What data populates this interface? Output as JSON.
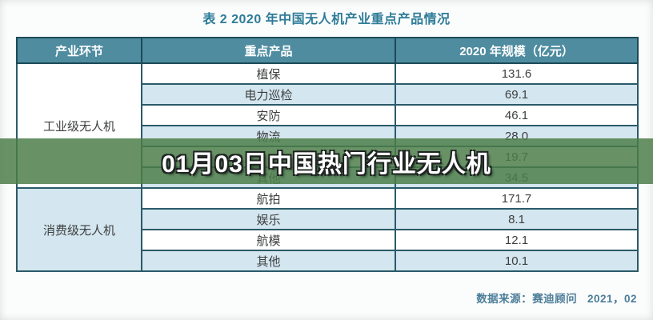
{
  "page": {
    "title": "表 2  2020 年中国无人机产业重点产品情况",
    "source_note": "数据来源：赛迪顾问   2021，02"
  },
  "banner": {
    "text": "01月03日中国热门行业无人机"
  },
  "chart_data": {
    "type": "table",
    "title": "表 2  2020 年中国无人机产业重点产品情况",
    "headers": [
      "产业环节",
      "重点产品",
      "2020 年规模（亿元）"
    ],
    "sections": [
      {
        "category": "工业级无人机",
        "rows": [
          [
            "植保",
            "131.6"
          ],
          [
            "电力巡检",
            "69.1"
          ],
          [
            "安防",
            "46.1"
          ],
          [
            "物流",
            "28.0"
          ],
          [
            "",
            "19.7"
          ],
          [
            "其他",
            "34.5"
          ]
        ]
      },
      {
        "category": "消费级无人机",
        "rows": [
          [
            "航拍",
            "171.7"
          ],
          [
            "娱乐",
            "8.1"
          ],
          [
            "航模",
            "12.1"
          ],
          [
            "其他",
            "10.1"
          ]
        ]
      }
    ],
    "source": "数据来源：赛迪顾问 2021，02"
  },
  "colors": {
    "header_bg": "#4f8ca0",
    "row_alt_bg": "#d4e6ef",
    "border": "#2b5a69",
    "outer_border": "#1d4a58",
    "title_text": "#2e7c99",
    "banner_overlay": "rgba(75,125,71,0.84)",
    "banner_text": "#ffffff",
    "source_text": "#4b7d99"
  }
}
